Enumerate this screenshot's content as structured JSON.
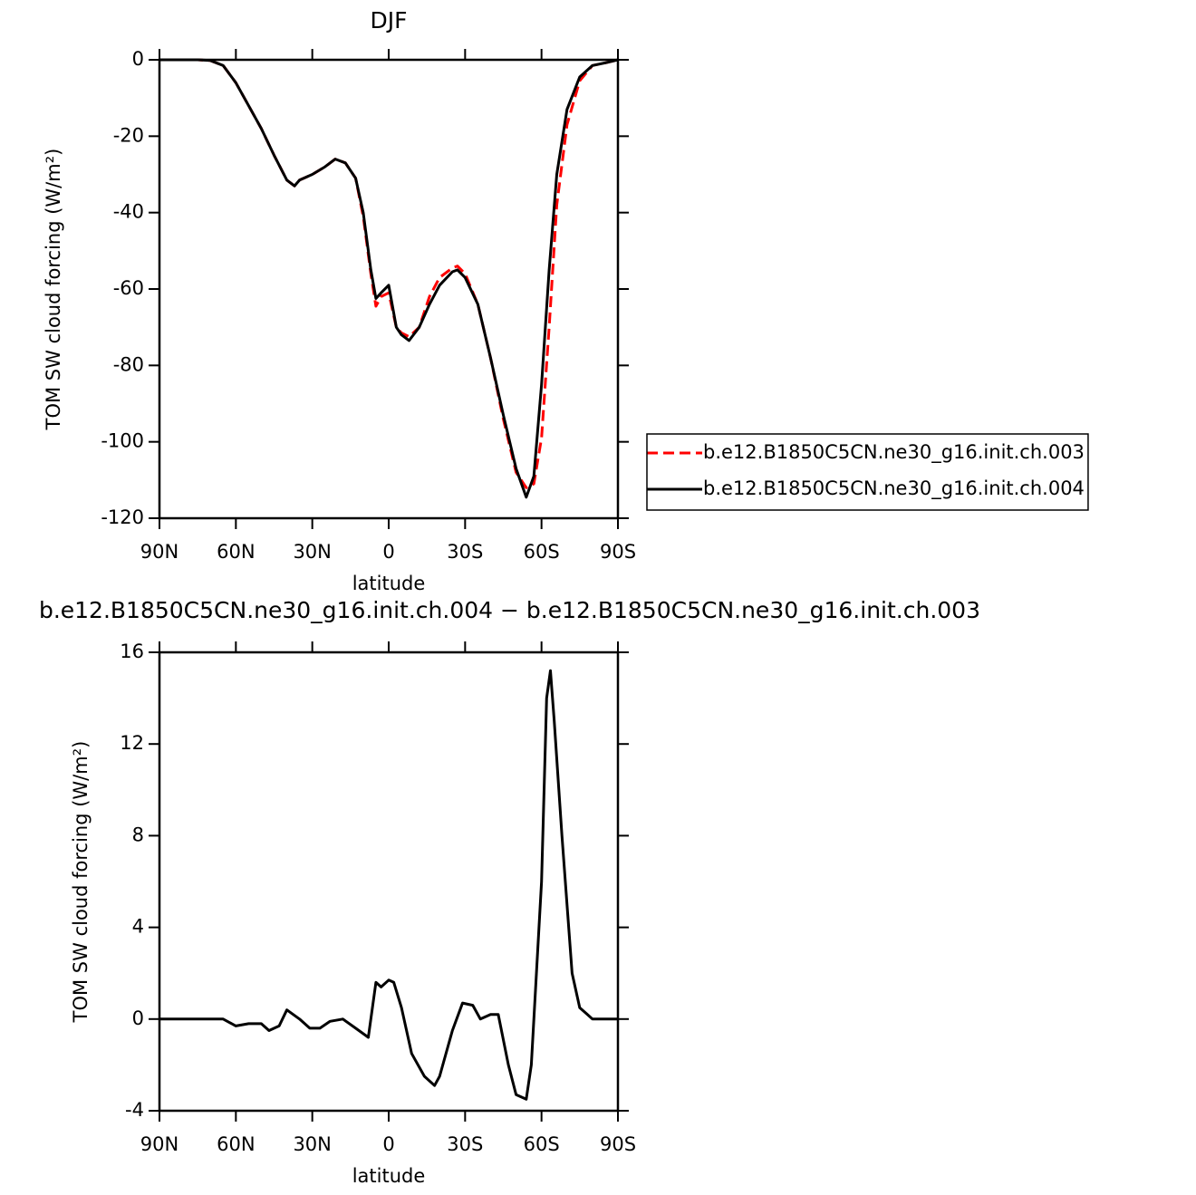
{
  "chart_data": [
    {
      "type": "line",
      "title": "DJF",
      "xlabel": "latitude",
      "ylabel": "TOM SW cloud forcing (W/m²)",
      "xlim": [
        90,
        -90
      ],
      "xticks": [
        {
          "value": 90,
          "label": "90N"
        },
        {
          "value": 60,
          "label": "60N"
        },
        {
          "value": 30,
          "label": "30N"
        },
        0,
        {
          "value": -30,
          "label": "30S"
        },
        {
          "value": -60,
          "label": "60S"
        },
        {
          "value": -90,
          "label": "90S"
        }
      ],
      "ylim": [
        -120,
        0
      ],
      "yticks": [
        -120,
        -100,
        -80,
        -60,
        -40,
        -20,
        0
      ],
      "legend": "right",
      "x": [
        90,
        85,
        80,
        75,
        70,
        65,
        60,
        55,
        50,
        45,
        40,
        37,
        35,
        30,
        25,
        21,
        17,
        13,
        10,
        7,
        5,
        3,
        0,
        -3,
        -5,
        -8,
        -12,
        -16,
        -20,
        -25,
        -27,
        -30,
        -35,
        -40,
        -45,
        -50,
        -54,
        -57,
        -60,
        -63,
        -66,
        -70,
        -75,
        -80,
        -85,
        -90
      ],
      "series": [
        {
          "name": "b.e12.B1850C5CN.ne30_g16.init.ch.003",
          "color": "#ff0000",
          "line_style": "dashed",
          "values": [
            0,
            0,
            0,
            0,
            -0.2,
            -1.5,
            -6,
            -12,
            -18,
            -25,
            -31.5,
            -33,
            -31.5,
            -30,
            -28,
            -26,
            -27,
            -31,
            -41,
            -56,
            -64.5,
            -62,
            -61,
            -70,
            -71.5,
            -72.5,
            -70,
            -62,
            -57,
            -54.5,
            -54,
            -56,
            -64,
            -78,
            -94,
            -108,
            -112,
            -111,
            -99,
            -70,
            -38,
            -17,
            -5.5,
            -1.5,
            -0.8,
            0
          ]
        },
        {
          "name": "b.e12.B1850C5CN.ne30_g16.init.ch.004",
          "color": "#000000",
          "line_style": "solid",
          "values": [
            0,
            0,
            0,
            0,
            -0.2,
            -1.5,
            -6,
            -12,
            -18,
            -25,
            -31.5,
            -33,
            -31.5,
            -30,
            -28,
            -26,
            -27,
            -31,
            -40,
            -55,
            -62.5,
            -61,
            -59,
            -70,
            -72,
            -73.5,
            -70,
            -64,
            -59,
            -55.5,
            -55,
            -57,
            -64,
            -78,
            -93,
            -107,
            -114.5,
            -109,
            -85,
            -55,
            -30,
            -13,
            -4.5,
            -1.5,
            -0.8,
            0
          ]
        }
      ]
    },
    {
      "type": "line",
      "title": "b.e12.B1850C5CN.ne30_g16.init.ch.004 − b.e12.B1850C5CN.ne30_g16.init.ch.003",
      "xlabel": "latitude",
      "ylabel": "TOM SW cloud forcing (W/m²)",
      "xlim": [
        90,
        -90
      ],
      "xticks": [
        {
          "value": 90,
          "label": "90N"
        },
        {
          "value": 60,
          "label": "60N"
        },
        {
          "value": 30,
          "label": "30N"
        },
        0,
        {
          "value": -30,
          "label": "30S"
        },
        {
          "value": -60,
          "label": "60S"
        },
        {
          "value": -90,
          "label": "90S"
        }
      ],
      "ylim": [
        -4,
        16
      ],
      "yticks": [
        -4,
        0,
        4,
        8,
        12,
        16
      ],
      "x": [
        90,
        80,
        70,
        65,
        60,
        55,
        50,
        47,
        43,
        40,
        35,
        31,
        27,
        23,
        18,
        13,
        8,
        5,
        3,
        0,
        -2,
        -5,
        -9,
        -14,
        -18,
        -20,
        -25,
        -29,
        -33,
        -36,
        -40,
        -43,
        -47,
        -50,
        -54,
        -56,
        -60,
        -62,
        -63.5,
        -65,
        -68,
        -72,
        -75,
        -78,
        -80,
        -90
      ],
      "series": [
        {
          "color": "#000000",
          "line_style": "solid",
          "values": [
            0,
            0,
            0,
            0,
            -0.3,
            -0.2,
            -0.2,
            -0.5,
            -0.3,
            0.4,
            0,
            -0.4,
            -0.4,
            -0.1,
            0,
            -0.4,
            -0.8,
            1.6,
            1.4,
            1.7,
            1.6,
            0.5,
            -1.5,
            -2.5,
            -2.9,
            -2.5,
            -0.5,
            0.7,
            0.6,
            0,
            0.2,
            0.2,
            -2,
            -3.3,
            -3.5,
            -2,
            6,
            14,
            15.2,
            13,
            8,
            2,
            0.5,
            0.2,
            0,
            0
          ]
        }
      ]
    }
  ]
}
